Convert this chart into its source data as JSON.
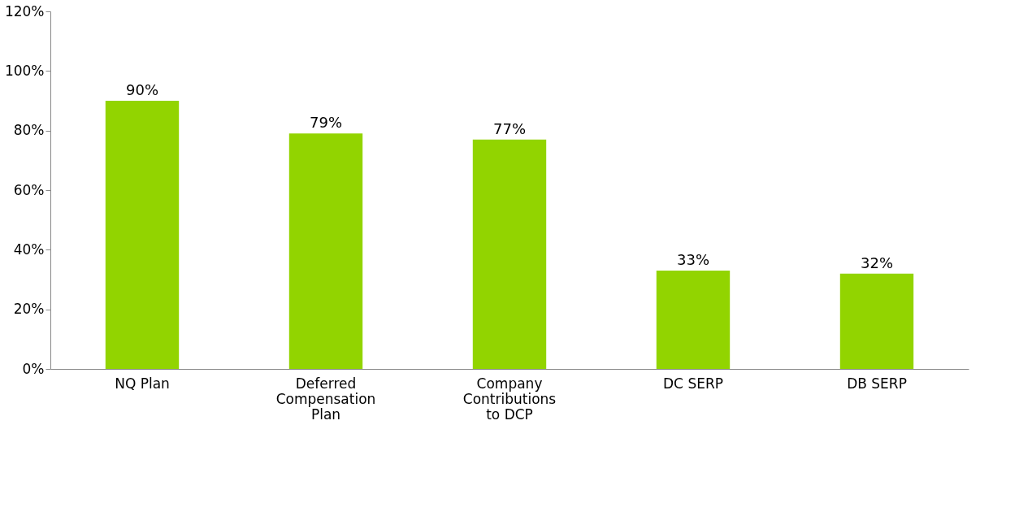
{
  "chart_data": {
    "type": "bar",
    "categories": [
      "NQ Plan",
      "Deferred Compensation Plan",
      "Company Contributions to DCP",
      "DC SERP",
      "DB SERP"
    ],
    "values": [
      90,
      79,
      77,
      33,
      32
    ],
    "value_labels": [
      "90%",
      "79%",
      "77%",
      "33%",
      "32%"
    ],
    "color": "#92d400",
    "ylim": [
      0,
      120
    ],
    "yticks": [
      {
        "value": 0,
        "label": "0%"
      },
      {
        "value": 20,
        "label": "20%"
      },
      {
        "value": 40,
        "label": "40%"
      },
      {
        "value": 60,
        "label": "60%"
      },
      {
        "value": 80,
        "label": "80%"
      },
      {
        "value": 100,
        "label": "100%"
      },
      {
        "value": 120,
        "label": "120%"
      }
    ],
    "grid": false
  }
}
